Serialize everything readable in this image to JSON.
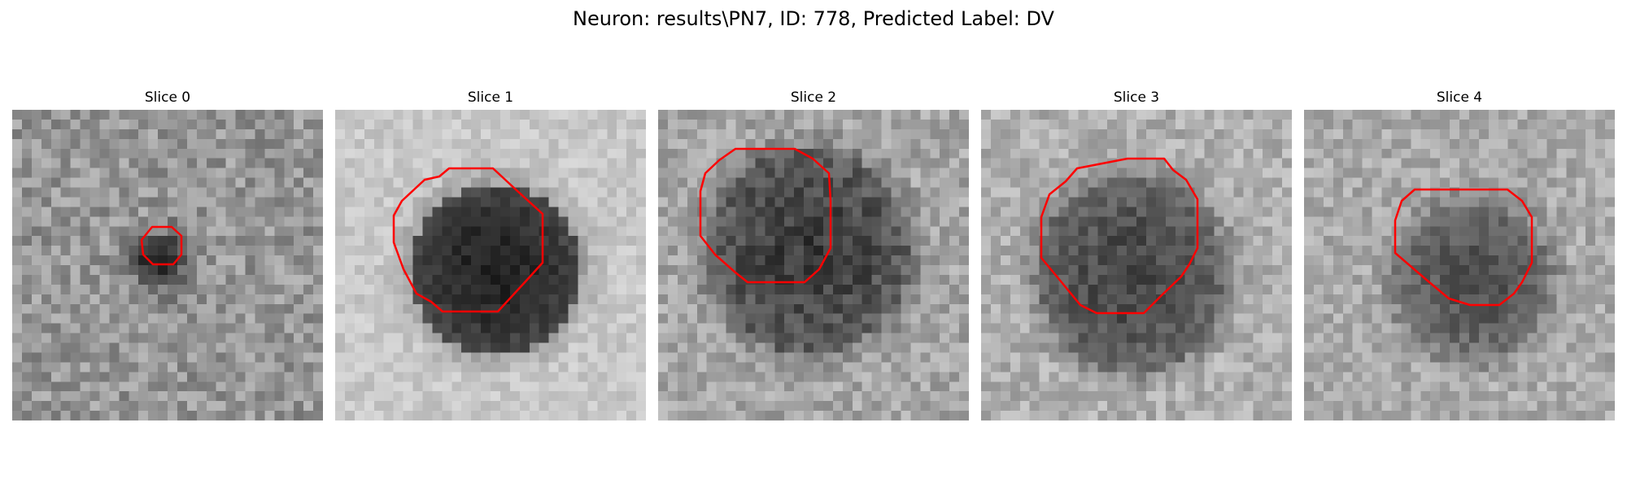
{
  "figure": {
    "title": "Neuron: results\\PN7, ID: 778, Predicted Label: DV"
  },
  "panels": [
    {
      "title": "Slice 0",
      "contour_color": "#ff0000"
    },
    {
      "title": "Slice 1",
      "contour_color": "#ff0000"
    },
    {
      "title": "Slice 2",
      "contour_color": "#ff0000"
    },
    {
      "title": "Slice 3",
      "contour_color": "#ff0000"
    },
    {
      "title": "Slice 4",
      "contour_color": "#ff0000"
    }
  ],
  "colormap": "gray"
}
